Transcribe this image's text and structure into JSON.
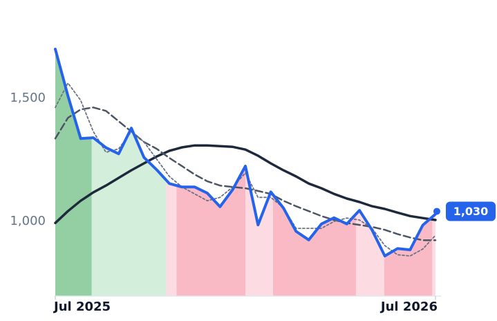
{
  "chart_data": {
    "type": "line",
    "x": [
      0,
      0.4,
      0.8,
      1.2,
      1.6,
      2.0,
      2.4,
      2.8,
      3.2,
      3.6,
      4.0,
      4.4,
      4.8,
      5.2,
      5.6,
      6.0,
      6.4,
      6.8,
      7.2,
      7.6,
      8.0,
      8.4,
      8.8,
      9.2,
      9.6,
      10.0,
      10.4,
      10.8,
      11.2,
      11.6,
      12.0
    ],
    "xlim": [
      -0.044,
      12.175
    ],
    "xticks": [
      {
        "value": 0,
        "label": "Jul 2025"
      },
      {
        "value": 12,
        "label": "Jul 2026"
      }
    ],
    "ylim": [
      697,
      1787
    ],
    "yticks": [
      {
        "value": 1000,
        "label": "1,000"
      },
      {
        "value": 1500,
        "label": "1,500"
      }
    ],
    "grid": false,
    "series": [
      {
        "color": "#1e293b",
        "style": "solid",
        "width": 3.5,
        "values": [
          994,
          1042,
          1084,
          1118,
          1146,
          1177,
          1208,
          1236,
          1264,
          1287,
          1301,
          1309,
          1309,
          1306,
          1303,
          1292,
          1267,
          1236,
          1208,
          1183,
          1154,
          1135,
          1112,
          1093,
          1079,
          1062,
          1051,
          1036,
          1022,
          1014,
          1006
        ]
      },
      {
        "color": "#4b5563",
        "style": "dashed",
        "width": 2.5,
        "values": [
          1337,
          1421,
          1455,
          1463,
          1449,
          1407,
          1365,
          1323,
          1295,
          1258,
          1225,
          1191,
          1163,
          1146,
          1140,
          1135,
          1124,
          1112,
          1084,
          1062,
          1042,
          1022,
          1006,
          994,
          986,
          978,
          966,
          949,
          935,
          924,
          924
        ]
      },
      {
        "color": "#6b7280",
        "style": "dotted",
        "width": 1.8,
        "values": [
          1463,
          1562,
          1492,
          1365,
          1281,
          1295,
          1365,
          1323,
          1253,
          1183,
          1140,
          1112,
          1084,
          1098,
          1140,
          1197,
          1098,
          1098,
          1056,
          972,
          972,
          972,
          1000,
          1014,
          1006,
          972,
          902,
          865,
          860,
          888,
          944
        ]
      },
      {
        "color": "#2563eb",
        "style": "solid",
        "width": 4,
        "area": true,
        "values": [
          1700,
          1510,
          1337,
          1340,
          1300,
          1275,
          1379,
          1260,
          1210,
          1154,
          1140,
          1140,
          1115,
          1060,
          1130,
          1225,
          986,
          1120,
          1055,
          960,
          925,
          990,
          1015,
          990,
          1045,
          965,
          860,
          890,
          885,
          985,
          1030
        ],
        "value_labels": [
          null,
          null,
          null,
          null,
          null,
          null,
          null,
          null,
          null,
          null,
          null,
          null,
          null,
          null,
          null,
          null,
          null,
          null,
          null,
          null,
          null,
          null,
          null,
          null,
          null,
          null,
          null,
          null,
          null,
          null,
          "1,030"
        ]
      }
    ],
    "bands": [
      {
        "start": -0.044,
        "end": 1.15,
        "color": "#93cfa3"
      },
      {
        "start": 1.15,
        "end": 3.5,
        "color": "#d3eedb"
      },
      {
        "start": 3.5,
        "end": 3.83,
        "color": "#fcdce2"
      },
      {
        "start": 3.83,
        "end": 6.0,
        "color": "#f9b9c5"
      },
      {
        "start": 6.0,
        "end": 6.87,
        "color": "#fcdce2"
      },
      {
        "start": 6.87,
        "end": 9.49,
        "color": "#f9b9c5"
      },
      {
        "start": 9.49,
        "end": 10.38,
        "color": "#fcdce2"
      },
      {
        "start": 10.38,
        "end": 11.9,
        "color": "#f9b9c5"
      },
      {
        "start": 11.9,
        "end": 12.175,
        "color": "#fcdce2"
      }
    ]
  }
}
